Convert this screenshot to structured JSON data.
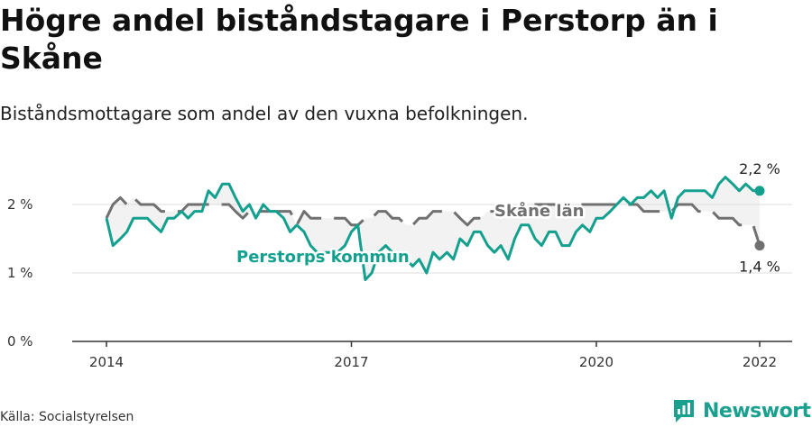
{
  "title": "Högre andel biståndstagare i Perstorp än i Skåne",
  "subtitle": "Biståndsmottagare som andel av den vuxna befolkningen.",
  "source": "Källa: Socialstyrelsen",
  "brand": {
    "name": "Newsworthy",
    "icon": "newsworthy-logo-icon"
  },
  "colors": {
    "perstorp": "#14a08e",
    "skane": "#707070",
    "fill": "#f2f2f2",
    "grid": "#dddddd",
    "axis": "#333333"
  },
  "chart_data": {
    "type": "line",
    "ylim": [
      0,
      2.5
    ],
    "xlim": [
      2014,
      2022.3
    ],
    "grid": true,
    "y_ticks": [
      {
        "value": 0,
        "label": "0 %"
      },
      {
        "value": 1,
        "label": "1 %"
      },
      {
        "value": 2,
        "label": "2 %"
      }
    ],
    "x_ticks": [
      {
        "value": 2014,
        "label": "2014"
      },
      {
        "value": 2017,
        "label": "2017"
      },
      {
        "value": 2020,
        "label": "2020"
      },
      {
        "value": 2022,
        "label": "2022"
      }
    ],
    "series": [
      {
        "name": "Skåne län",
        "style": "dashed",
        "color": "#707070",
        "x": [
          2014.0,
          2014.08,
          2014.17,
          2014.25,
          2014.33,
          2014.42,
          2014.5,
          2014.58,
          2014.67,
          2014.75,
          2014.83,
          2014.92,
          2015.0,
          2015.08,
          2015.17,
          2015.25,
          2015.33,
          2015.42,
          2015.5,
          2015.58,
          2015.67,
          2015.75,
          2015.83,
          2015.92,
          2016.0,
          2016.08,
          2016.17,
          2016.25,
          2016.33,
          2016.42,
          2016.5,
          2016.58,
          2016.67,
          2016.75,
          2016.83,
          2016.92,
          2017.0,
          2017.08,
          2017.17,
          2017.25,
          2017.33,
          2017.42,
          2017.5,
          2017.58,
          2017.67,
          2017.75,
          2017.83,
          2017.92,
          2018.0,
          2018.08,
          2018.17,
          2018.25,
          2018.33,
          2018.42,
          2018.5,
          2018.58,
          2018.67,
          2018.75,
          2018.83,
          2018.92,
          2019.0,
          2019.08,
          2019.17,
          2019.25,
          2019.33,
          2019.42,
          2019.5,
          2019.58,
          2019.67,
          2019.75,
          2019.83,
          2019.92,
          2020.0,
          2020.08,
          2020.17,
          2020.25,
          2020.33,
          2020.42,
          2020.5,
          2020.58,
          2020.67,
          2020.75,
          2020.83,
          2020.92,
          2021.0,
          2021.08,
          2021.17,
          2021.25,
          2021.33,
          2021.42,
          2021.5,
          2021.58,
          2021.67,
          2021.75,
          2021.83,
          2021.92,
          2022.0
        ],
        "values": [
          1.8,
          2.0,
          2.1,
          2.0,
          2.1,
          2.0,
          2.0,
          2.0,
          1.9,
          1.9,
          1.9,
          1.9,
          2.0,
          2.0,
          2.0,
          2.0,
          2.0,
          2.0,
          2.0,
          1.9,
          1.8,
          1.9,
          1.9,
          1.9,
          1.9,
          1.9,
          1.9,
          1.9,
          1.7,
          1.9,
          1.8,
          1.8,
          1.8,
          1.8,
          1.8,
          1.8,
          1.7,
          1.7,
          1.8,
          1.8,
          1.9,
          1.9,
          1.8,
          1.8,
          1.7,
          1.7,
          1.8,
          1.8,
          1.9,
          1.9,
          1.9,
          1.9,
          1.8,
          1.7,
          1.8,
          1.8,
          1.9,
          1.9,
          1.9,
          1.9,
          1.9,
          1.9,
          2.0,
          2.0,
          2.0,
          2.0,
          2.0,
          2.0,
          2.0,
          2.0,
          2.0,
          2.0,
          2.0,
          2.0,
          2.0,
          2.0,
          2.0,
          2.0,
          2.0,
          1.9,
          1.9,
          1.9,
          1.9,
          1.9,
          2.0,
          2.0,
          2.0,
          1.9,
          1.9,
          1.9,
          1.8,
          1.8,
          1.8,
          1.7,
          1.7,
          1.7,
          1.4
        ]
      },
      {
        "name": "Perstorps kommun",
        "style": "solid",
        "color": "#14a08e",
        "x": [
          2014.0,
          2014.08,
          2014.17,
          2014.25,
          2014.33,
          2014.42,
          2014.5,
          2014.58,
          2014.67,
          2014.75,
          2014.83,
          2014.92,
          2015.0,
          2015.08,
          2015.17,
          2015.25,
          2015.33,
          2015.42,
          2015.5,
          2015.58,
          2015.67,
          2015.75,
          2015.83,
          2015.92,
          2016.0,
          2016.08,
          2016.17,
          2016.25,
          2016.33,
          2016.42,
          2016.5,
          2016.58,
          2016.67,
          2016.75,
          2016.83,
          2016.92,
          2017.0,
          2017.08,
          2017.17,
          2017.25,
          2017.33,
          2017.42,
          2017.5,
          2017.58,
          2017.67,
          2017.75,
          2017.83,
          2017.92,
          2018.0,
          2018.08,
          2018.17,
          2018.25,
          2018.33,
          2018.42,
          2018.5,
          2018.58,
          2018.67,
          2018.75,
          2018.83,
          2018.92,
          2019.0,
          2019.08,
          2019.17,
          2019.25,
          2019.33,
          2019.42,
          2019.5,
          2019.58,
          2019.67,
          2019.75,
          2019.83,
          2019.92,
          2020.0,
          2020.08,
          2020.17,
          2020.25,
          2020.33,
          2020.42,
          2020.5,
          2020.58,
          2020.67,
          2020.75,
          2020.83,
          2020.92,
          2021.0,
          2021.08,
          2021.17,
          2021.25,
          2021.33,
          2021.42,
          2021.5,
          2021.58,
          2021.67,
          2021.75,
          2021.83,
          2021.92,
          2022.0
        ],
        "values": [
          1.8,
          1.4,
          1.5,
          1.6,
          1.8,
          1.8,
          1.8,
          1.7,
          1.6,
          1.8,
          1.8,
          1.9,
          1.8,
          1.9,
          1.9,
          2.2,
          2.1,
          2.3,
          2.3,
          2.1,
          1.9,
          2.0,
          1.8,
          2.0,
          1.9,
          1.9,
          1.8,
          1.6,
          1.7,
          1.6,
          1.4,
          1.3,
          1.3,
          1.3,
          1.3,
          1.4,
          1.6,
          1.7,
          0.9,
          1.0,
          1.3,
          1.4,
          1.3,
          1.3,
          1.2,
          1.1,
          1.2,
          1.0,
          1.3,
          1.2,
          1.3,
          1.2,
          1.5,
          1.4,
          1.6,
          1.6,
          1.4,
          1.3,
          1.4,
          1.2,
          1.5,
          1.7,
          1.7,
          1.5,
          1.4,
          1.6,
          1.6,
          1.4,
          1.4,
          1.6,
          1.7,
          1.6,
          1.8,
          1.8,
          1.9,
          2.0,
          2.1,
          2.0,
          2.1,
          2.1,
          2.2,
          2.1,
          2.2,
          1.8,
          2.1,
          2.2,
          2.2,
          2.2,
          2.2,
          2.1,
          2.3,
          2.4,
          2.3,
          2.2,
          2.3,
          2.2,
          2.2
        ]
      }
    ],
    "annotations": [
      {
        "text": "2,2 %",
        "series": "Perstorps kommun"
      },
      {
        "text": "1,4 %",
        "series": "Skåne län"
      }
    ]
  }
}
